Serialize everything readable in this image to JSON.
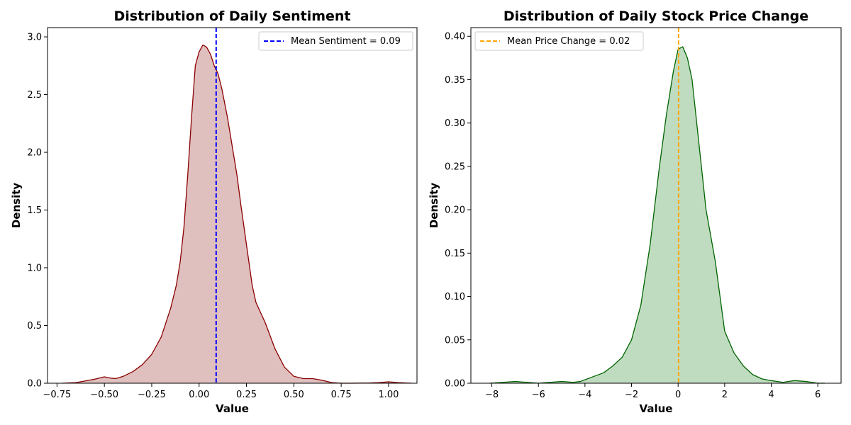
{
  "chart_data": [
    {
      "type": "area",
      "title": "Distribution of Daily Sentiment",
      "xlabel": "Value",
      "ylabel": "Density",
      "xlim": [
        -0.8,
        1.15
      ],
      "ylim": [
        0,
        3.08
      ],
      "xticks": [
        -0.75,
        -0.5,
        -0.25,
        0.0,
        0.25,
        0.5,
        0.75,
        1.0
      ],
      "xtick_labels": [
        "−0.75",
        "−0.50",
        "−0.25",
        "0.00",
        "0.25",
        "0.50",
        "0.75",
        "1.00"
      ],
      "yticks": [
        0.0,
        0.5,
        1.0,
        1.5,
        2.0,
        2.5,
        3.0
      ],
      "ytick_labels": [
        "0.0",
        "0.5",
        "1.0",
        "1.5",
        "2.0",
        "2.5",
        "3.0"
      ],
      "grid": false,
      "legend_position": "top-right",
      "line_color": "#8b0000",
      "fill_color": "#e0bfbf",
      "series": [
        {
          "x": [
            -0.72,
            -0.65,
            -0.6,
            -0.55,
            -0.5,
            -0.47,
            -0.44,
            -0.4,
            -0.35,
            -0.3,
            -0.25,
            -0.2,
            -0.15,
            -0.12,
            -0.1,
            -0.08,
            -0.06,
            -0.04,
            -0.02,
            0.0,
            0.02,
            0.04,
            0.06,
            0.08,
            0.1,
            0.12,
            0.15,
            0.18,
            0.2,
            0.22,
            0.25,
            0.28,
            0.3,
            0.35,
            0.4,
            0.45,
            0.5,
            0.55,
            0.6,
            0.65,
            0.7,
            0.75,
            0.8,
            0.9,
            0.95,
            1.0,
            1.05,
            1.12
          ],
          "y": [
            0.0,
            0.005,
            0.02,
            0.035,
            0.055,
            0.045,
            0.04,
            0.06,
            0.1,
            0.16,
            0.25,
            0.4,
            0.65,
            0.85,
            1.05,
            1.35,
            1.8,
            2.3,
            2.75,
            2.87,
            2.93,
            2.91,
            2.85,
            2.75,
            2.68,
            2.55,
            2.3,
            2.0,
            1.8,
            1.55,
            1.2,
            0.85,
            0.7,
            0.52,
            0.3,
            0.14,
            0.06,
            0.04,
            0.04,
            0.025,
            0.005,
            0.0,
            0.0,
            0.002,
            0.005,
            0.012,
            0.005,
            0.0
          ]
        }
      ],
      "reference_line": {
        "x": 0.09,
        "color": "#0000ff",
        "label": "Mean Sentiment = 0.09"
      }
    },
    {
      "type": "area",
      "title": "Distribution of Daily Stock Price Change",
      "xlabel": "Value",
      "ylabel": "Density",
      "xlim": [
        -8.9,
        7.0
      ],
      "ylim": [
        0,
        0.41
      ],
      "xticks": [
        -8,
        -6,
        -4,
        -2,
        0,
        2,
        4,
        6
      ],
      "xtick_labels": [
        "−8",
        "−6",
        "−4",
        "−2",
        "0",
        "2",
        "4",
        "6"
      ],
      "yticks": [
        0.0,
        0.05,
        0.1,
        0.15,
        0.2,
        0.25,
        0.3,
        0.35,
        0.4
      ],
      "ytick_labels": [
        "0.00",
        "0.05",
        "0.10",
        "0.15",
        "0.20",
        "0.25",
        "0.30",
        "0.35",
        "0.40"
      ],
      "grid": false,
      "legend_position": "top-left",
      "line_color": "#006400",
      "fill_color": "#c0dcc0",
      "series": [
        {
          "x": [
            -8.1,
            -7.5,
            -7.0,
            -6.5,
            -6.0,
            -5.5,
            -5.0,
            -4.5,
            -4.2,
            -4.0,
            -3.6,
            -3.2,
            -2.8,
            -2.4,
            -2.0,
            -1.6,
            -1.2,
            -0.8,
            -0.5,
            -0.2,
            0.0,
            0.2,
            0.4,
            0.6,
            0.8,
            1.0,
            1.2,
            1.6,
            2.0,
            2.4,
            2.8,
            3.2,
            3.6,
            4.0,
            4.5,
            5.0,
            5.5,
            6.0,
            6.3
          ],
          "y": [
            0.0,
            0.001,
            0.002,
            0.001,
            0.0,
            0.001,
            0.002,
            0.001,
            0.002,
            0.004,
            0.008,
            0.012,
            0.02,
            0.03,
            0.05,
            0.09,
            0.16,
            0.25,
            0.31,
            0.36,
            0.385,
            0.388,
            0.375,
            0.35,
            0.3,
            0.25,
            0.2,
            0.14,
            0.06,
            0.035,
            0.02,
            0.01,
            0.005,
            0.003,
            0.001,
            0.003,
            0.002,
            0.0,
            0.0
          ]
        }
      ],
      "reference_line": {
        "x": 0.02,
        "color": "#ffa500",
        "label": "Mean Price Change = 0.02"
      }
    }
  ]
}
